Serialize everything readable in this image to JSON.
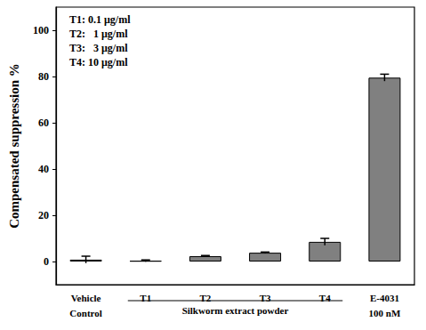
{
  "chart_data": {
    "type": "bar",
    "y_label": "Compensated suppression %",
    "categories": [
      "Vehicle\nControl",
      "T1",
      "T2",
      "T3",
      "T4",
      "E-4031\n100 nM"
    ],
    "values": [
      0.8,
      0.3,
      2.3,
      3.8,
      8.5,
      79.5
    ],
    "errors": [
      1.5,
      0.4,
      0.3,
      0.3,
      1.5,
      1.5
    ],
    "color": "#808080",
    "ylim": [
      -10,
      110
    ],
    "yticks": [
      0,
      20,
      40,
      60,
      80,
      100
    ],
    "grid": false,
    "annotations": [
      "T1: 0.1 μg/ml",
      "T2:   1 μg/ml",
      "T3:   3 μg/ml",
      "T4: 10 μg/ml"
    ],
    "group_label": {
      "text": "Silkworm extract powder",
      "from": "T1",
      "to": "T4"
    }
  }
}
